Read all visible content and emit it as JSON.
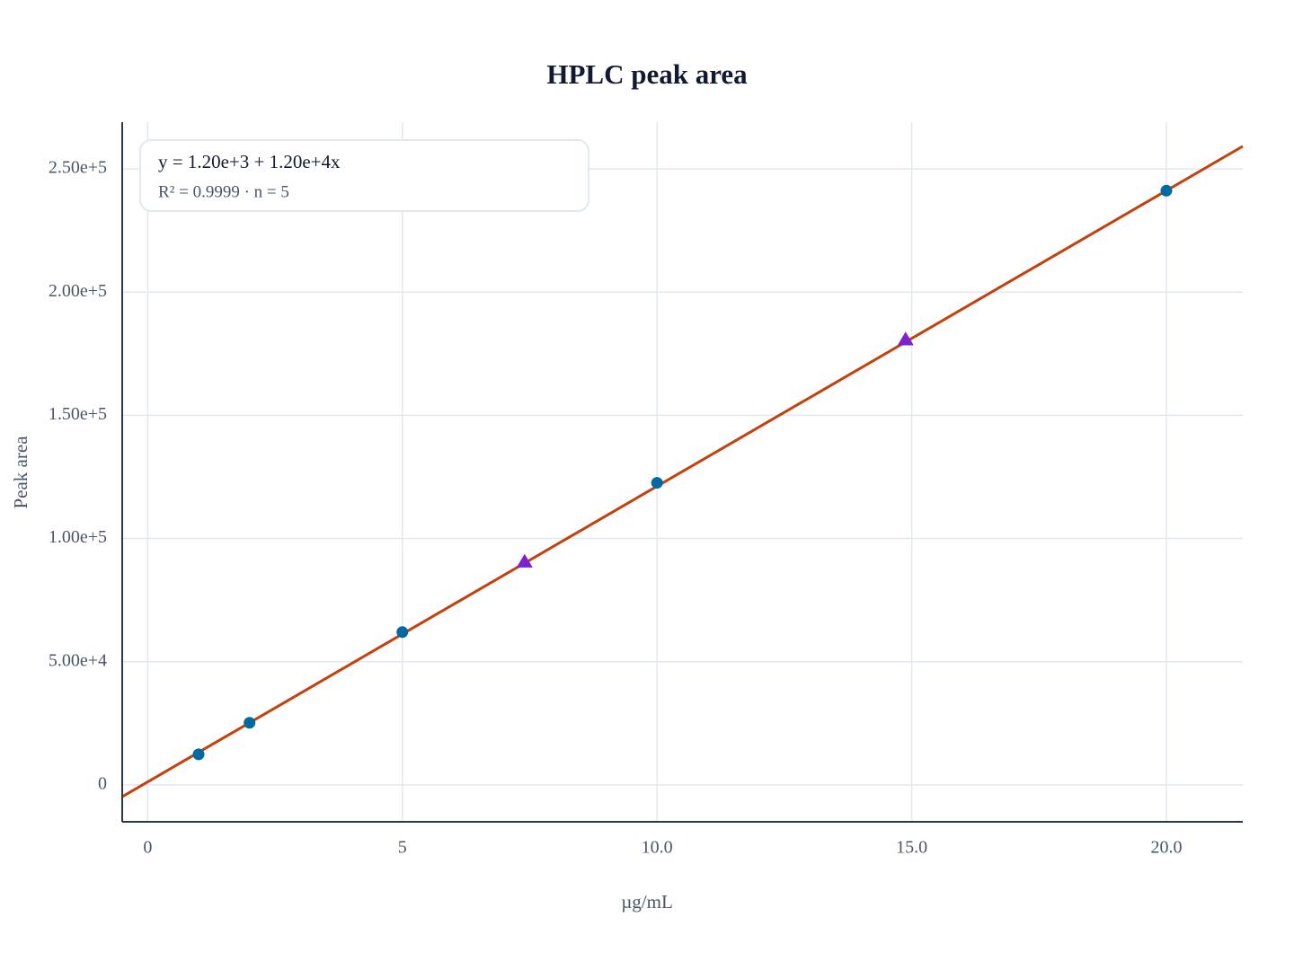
{
  "chart_data": {
    "type": "scatter",
    "title": "HPLC peak area",
    "x_label": "µg/mL",
    "y_label": "Peak area",
    "annotations": [
      "y = 1.20e+3 + 1.20e+4x",
      "R² = 0.9999 · n = 5"
    ],
    "xlim": [
      -0.5,
      21.5
    ],
    "ylim": [
      -15000,
      269000
    ],
    "xticks": [
      0,
      5,
      {
        "value": 10,
        "label": "10.0"
      },
      {
        "value": 15,
        "label": "15.0"
      },
      {
        "value": 20,
        "label": "20.0"
      }
    ],
    "yticks": [
      0,
      {
        "value": 50000,
        "label": "5.00e+4"
      },
      {
        "value": 100000,
        "label": "1.00e+5"
      },
      {
        "value": 150000,
        "label": "1.50e+5"
      },
      {
        "value": 200000,
        "label": "2.00e+5"
      },
      {
        "value": 250000,
        "label": "2.50e+5"
      }
    ],
    "grid": true,
    "series": [
      {
        "marker": "line",
        "color": "#c2410c",
        "x": [
          -0.5,
          21.5
        ],
        "values": [
          -4800,
          259200
        ]
      },
      {
        "marker": "circle",
        "color": "#0369a1",
        "x": [
          1,
          2,
          5,
          10,
          20
        ],
        "values": [
          12400,
          25200,
          62000,
          122600,
          241200
        ]
      },
      {
        "marker": "triangle",
        "color": "#7e22ce",
        "x": [
          7.4,
          14.88
        ],
        "values": [
          90500,
          180700
        ]
      }
    ]
  }
}
